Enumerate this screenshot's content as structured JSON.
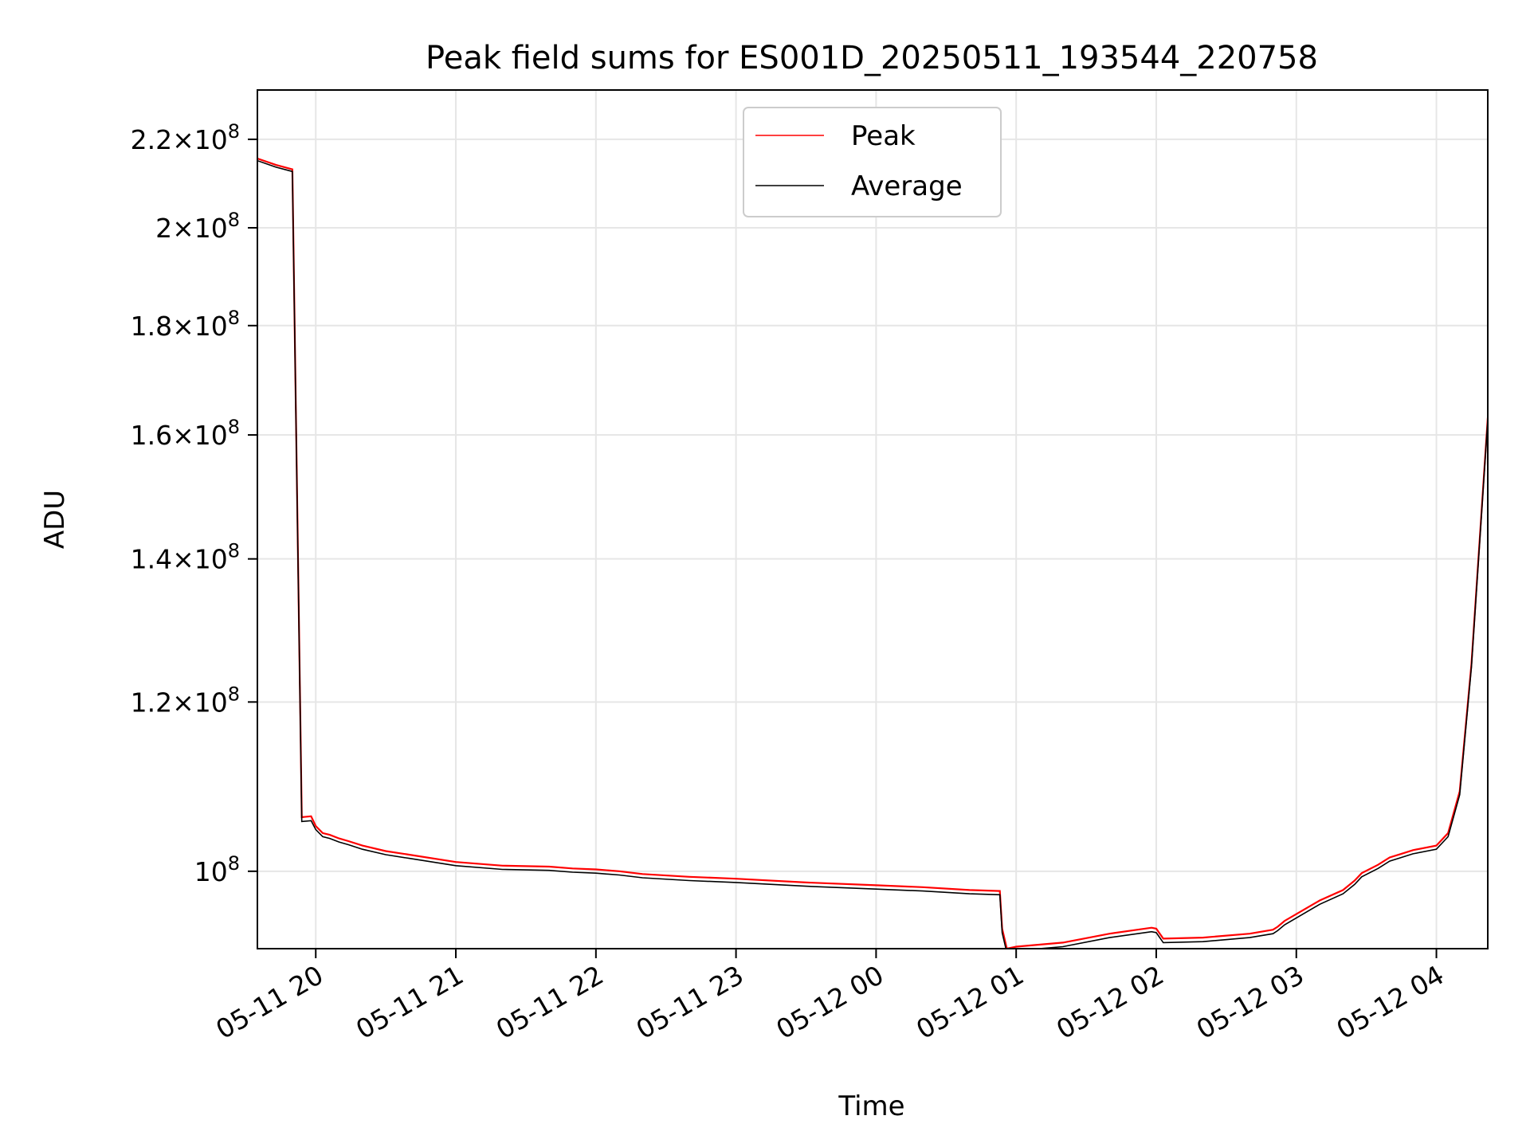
{
  "chart_data": {
    "type": "line",
    "title": "Peak field sums for ES001D_20250511_193544_220758",
    "xlabel": "Time",
    "ylabel": "ADU",
    "yscale": "log",
    "xlim": [
      "2025-05-11 19:35",
      "2025-05-12 04:22"
    ],
    "ylim": [
      92000000,
      232000000
    ],
    "grid": true,
    "legend_position": "upper center",
    "x_ticks": [
      {
        "t": "2025-05-11 20:00",
        "label": "05-11 20"
      },
      {
        "t": "2025-05-11 21:00",
        "label": "05-11 21"
      },
      {
        "t": "2025-05-11 22:00",
        "label": "05-11 22"
      },
      {
        "t": "2025-05-11 23:00",
        "label": "05-11 23"
      },
      {
        "t": "2025-05-12 00:00",
        "label": "05-12 00"
      },
      {
        "t": "2025-05-12 01:00",
        "label": "05-12 01"
      },
      {
        "t": "2025-05-12 02:00",
        "label": "05-12 02"
      },
      {
        "t": "2025-05-12 03:00",
        "label": "05-12 03"
      },
      {
        "t": "2025-05-12 04:00",
        "label": "05-12 04"
      }
    ],
    "y_ticks": [
      {
        "value": 100000000,
        "mantissa": "",
        "exp": "8"
      },
      {
        "value": 120000000,
        "mantissa": "1.2",
        "exp": "8"
      },
      {
        "value": 140000000,
        "mantissa": "1.4",
        "exp": "8"
      },
      {
        "value": 160000000,
        "mantissa": "1.6",
        "exp": "8"
      },
      {
        "value": 180000000,
        "mantissa": "1.8",
        "exp": "8"
      },
      {
        "value": 200000000,
        "mantissa": "2",
        "exp": "8"
      },
      {
        "value": 220000000,
        "mantissa": "2.2",
        "exp": "8"
      }
    ],
    "series": [
      {
        "name": "Peak",
        "color": "#ff0000",
        "x": [
          "2025-05-11 19:35",
          "2025-05-11 19:43",
          "2025-05-11 19:50",
          "2025-05-11 19:54",
          "2025-05-11 19:58",
          "2025-05-11 20:00",
          "2025-05-11 20:03",
          "2025-05-11 20:06",
          "2025-05-11 20:10",
          "2025-05-11 20:14",
          "2025-05-11 20:20",
          "2025-05-11 20:30",
          "2025-05-11 20:40",
          "2025-05-11 21:00",
          "2025-05-11 21:20",
          "2025-05-11 21:40",
          "2025-05-11 21:50",
          "2025-05-11 22:00",
          "2025-05-11 22:10",
          "2025-05-11 22:20",
          "2025-05-11 22:40",
          "2025-05-11 23:00",
          "2025-05-11 23:30",
          "2025-05-12 00:00",
          "2025-05-12 00:20",
          "2025-05-12 00:40",
          "2025-05-12 00:53",
          "2025-05-12 00:54",
          "2025-05-12 00:56",
          "2025-05-12 01:00",
          "2025-05-12 01:20",
          "2025-05-12 01:40",
          "2025-05-12 01:58",
          "2025-05-12 02:00",
          "2025-05-12 02:03",
          "2025-05-12 02:20",
          "2025-05-12 02:40",
          "2025-05-12 02:50",
          "2025-05-12 02:52",
          "2025-05-12 02:55",
          "2025-05-12 03:10",
          "2025-05-12 03:20",
          "2025-05-12 03:25",
          "2025-05-12 03:28",
          "2025-05-12 03:35",
          "2025-05-12 03:40",
          "2025-05-12 03:45",
          "2025-05-12 03:50",
          "2025-05-12 04:00",
          "2025-05-12 04:05",
          "2025-05-12 04:10",
          "2025-05-12 04:15",
          "2025-05-12 04:22"
        ],
        "y": [
          215500000,
          214000000,
          213000000,
          106000000,
          106100000,
          105000000,
          104200000,
          104000000,
          103600000,
          103300000,
          102800000,
          102200000,
          101800000,
          101000000,
          100600000,
          100500000,
          100300000,
          100200000,
          100000000,
          99700000,
          99400000,
          99200000,
          98800000,
          98500000,
          98300000,
          98000000,
          97900000,
          94000000,
          92000000,
          92200000,
          92600000,
          93500000,
          94100000,
          94000000,
          93000000,
          93100000,
          93500000,
          93900000,
          94200000,
          94800000,
          96900000,
          98000000,
          99000000,
          99800000,
          100700000,
          101500000,
          101900000,
          102300000,
          102800000,
          104200000,
          109000000,
          125000000,
          163000000
        ],
        "y_note_ignore": ""
      },
      {
        "name": "Average",
        "color": "#000000",
        "x": [
          "2025-05-11 19:35",
          "2025-05-11 19:43",
          "2025-05-11 19:50",
          "2025-05-11 19:54",
          "2025-05-11 19:58",
          "2025-05-11 20:00",
          "2025-05-11 20:03",
          "2025-05-11 20:06",
          "2025-05-11 20:10",
          "2025-05-11 20:14",
          "2025-05-11 20:20",
          "2025-05-11 20:30",
          "2025-05-11 20:40",
          "2025-05-11 21:00",
          "2025-05-11 21:20",
          "2025-05-11 21:40",
          "2025-05-11 21:50",
          "2025-05-11 22:00",
          "2025-05-11 22:10",
          "2025-05-11 22:20",
          "2025-05-11 22:40",
          "2025-05-11 23:00",
          "2025-05-11 23:30",
          "2025-05-12 00:00",
          "2025-05-12 00:20",
          "2025-05-12 00:40",
          "2025-05-12 00:53",
          "2025-05-12 00:54",
          "2025-05-12 00:56",
          "2025-05-12 01:00",
          "2025-05-12 01:20",
          "2025-05-12 01:40",
          "2025-05-12 01:58",
          "2025-05-12 02:00",
          "2025-05-12 02:03",
          "2025-05-12 02:20",
          "2025-05-12 02:40",
          "2025-05-12 02:50",
          "2025-05-12 02:52",
          "2025-05-12 02:55",
          "2025-05-12 03:10",
          "2025-05-12 03:20",
          "2025-05-12 03:25",
          "2025-05-12 03:28",
          "2025-05-12 03:35",
          "2025-05-12 03:40",
          "2025-05-12 03:45",
          "2025-05-12 03:50",
          "2025-05-12 04:00",
          "2025-05-12 04:05",
          "2025-05-12 04:10",
          "2025-05-12 04:15",
          "2025-05-12 04:22"
        ],
        "y": [
          215000000,
          213500000,
          212500000,
          105500000,
          105600000,
          104600000,
          103800000,
          103600000,
          103200000,
          102900000,
          102400000,
          101800000,
          101400000,
          100600000,
          100200000,
          100100000,
          99900000,
          99800000,
          99600000,
          99300000,
          99000000,
          98800000,
          98400000,
          98100000,
          97900000,
          97600000,
          97500000,
          93600000,
          91600000,
          91800000,
          92200000,
          93100000,
          93700000,
          93600000,
          92600000,
          92700000,
          93100000,
          93500000,
          93800000,
          94400000,
          96500000,
          97600000,
          98600000,
          99400000,
          100300000,
          101100000,
          101500000,
          101900000,
          102400000,
          103800000,
          108600000,
          124600000,
          162600000
        ]
      }
    ]
  }
}
